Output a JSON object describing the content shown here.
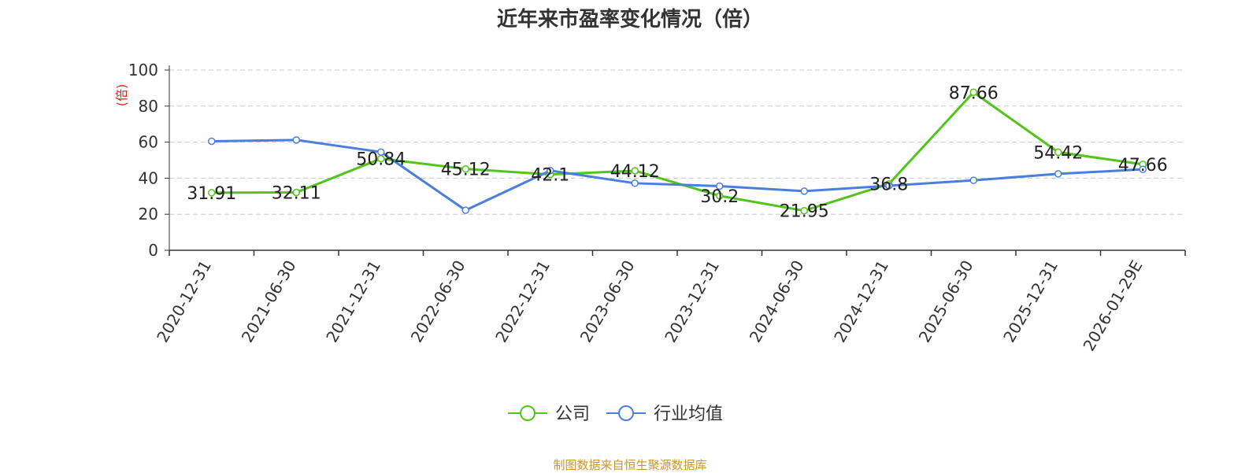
{
  "title": "近年来市盈率变化情况（倍）",
  "source": "制图数据来自恒生聚源数据库",
  "chart_data": {
    "type": "line",
    "title": "近年来市盈率变化情况（倍）",
    "ylabel": "(倍)",
    "xlabel": "",
    "ylim": [
      0,
      100
    ],
    "yticks": [
      0,
      20,
      40,
      60,
      80,
      100
    ],
    "grid": true,
    "legend_position": "bottom",
    "categories": [
      "2020-12-31",
      "2021-06-30",
      "2021-12-31",
      "2022-06-30",
      "2022-12-31",
      "2023-06-30",
      "2023-12-31",
      "2024-06-30",
      "2024-12-31",
      "2025-06-30",
      "2025-12-31",
      "2026-01-29E"
    ],
    "series": [
      {
        "name": "公司",
        "color": "#52c41a",
        "values": [
          31.91,
          32.11,
          50.84,
          45.12,
          42.1,
          44.12,
          30.2,
          21.95,
          36.8,
          87.66,
          54.42,
          47.66
        ],
        "labels": [
          "31.91",
          "32.11",
          "50.84",
          "45.12",
          "42.1",
          "44.12",
          "30.2",
          "21.95",
          "36.8",
          "87.66",
          "54.42",
          "47.66"
        ]
      },
      {
        "name": "行业均值",
        "color": "#4a7fde",
        "values": [
          60.5,
          61.2,
          54.5,
          22.2,
          44.2,
          37.2,
          35.6,
          32.8,
          35.8,
          38.8,
          42.4,
          44.9
        ]
      }
    ]
  }
}
